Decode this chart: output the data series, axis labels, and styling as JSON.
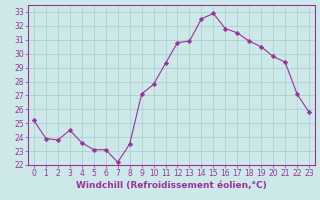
{
  "hours": [
    0,
    1,
    2,
    3,
    4,
    5,
    6,
    7,
    8,
    9,
    10,
    11,
    12,
    13,
    14,
    15,
    16,
    17,
    18,
    19,
    20,
    21,
    22,
    23
  ],
  "values": [
    25.2,
    23.9,
    23.8,
    24.5,
    23.6,
    23.1,
    23.1,
    22.2,
    23.5,
    27.1,
    27.8,
    29.3,
    30.8,
    30.9,
    32.5,
    32.9,
    31.8,
    31.5,
    30.9,
    30.5,
    29.8,
    29.4,
    27.1,
    25.8
  ],
  "line_color": "#993399",
  "marker": "D",
  "marker_size": 2.2,
  "bg_color": "#cce8e8",
  "grid_color": "#aacccc",
  "xlabel": "Windchill (Refroidissement éolien,°C)",
  "ylim": [
    22,
    33.5
  ],
  "yticks": [
    22,
    23,
    24,
    25,
    26,
    27,
    28,
    29,
    30,
    31,
    32,
    33
  ],
  "xticks": [
    0,
    1,
    2,
    3,
    4,
    5,
    6,
    7,
    8,
    9,
    10,
    11,
    12,
    13,
    14,
    15,
    16,
    17,
    18,
    19,
    20,
    21,
    22,
    23
  ],
  "spine_color": "#993399",
  "tick_color": "#993399",
  "xlabel_color": "#993399",
  "tick_fontsize": 5.5,
  "xlabel_fontsize": 6.5
}
